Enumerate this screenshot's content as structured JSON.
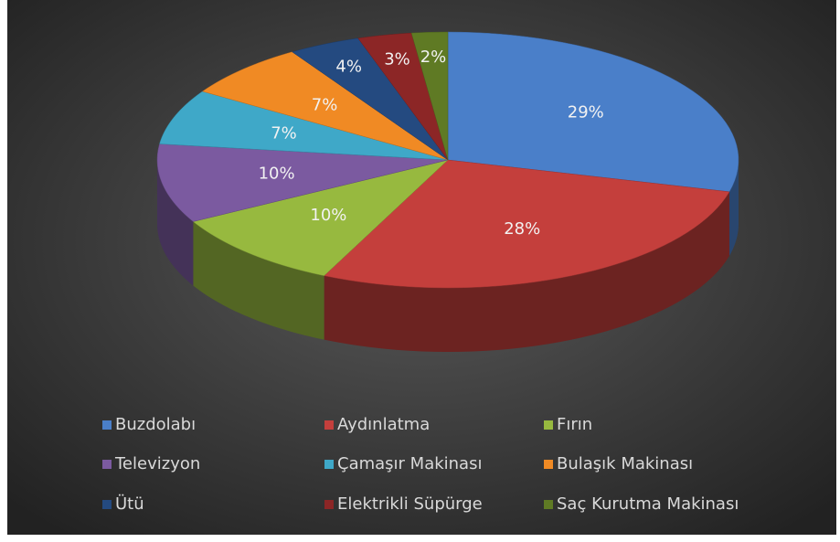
{
  "chart_data": {
    "type": "pie3d",
    "categories": [
      "Buzdolabı",
      "Aydınlatma",
      "Fırın",
      "Televizyon",
      "Çamaşır Makinası",
      "Bulaşık Makinası",
      "Ütü",
      "Elektrikli Süpürge",
      "Saç Kurutma Makinası"
    ],
    "values": [
      29,
      28,
      10,
      10,
      7,
      7,
      4,
      3,
      2
    ],
    "value_labels": [
      "29%",
      "28%",
      "10%",
      "10%",
      "7%",
      "7%",
      "4%",
      "3%",
      "2%"
    ],
    "colors": [
      "#4a7fc9",
      "#c43f3c",
      "#97b93f",
      "#7b5aa0",
      "#3fa8c8",
      "#f08a24",
      "#244a80",
      "#8c2626",
      "#5f7a24"
    ],
    "legend": "bottom"
  }
}
